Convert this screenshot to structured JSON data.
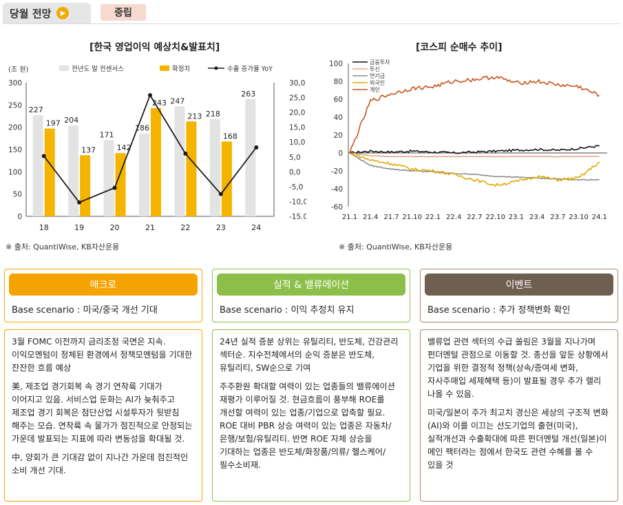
{
  "header": {
    "tab_label": "당월 전망",
    "arrow_glyph": "▶",
    "stance": "중립"
  },
  "chart_data": [
    {
      "type": "bar",
      "title": "[한국 영업이익 예상치&발표치]",
      "unit_label": "(조 원)",
      "categories": [
        "18",
        "19",
        "20",
        "21",
        "22",
        "23",
        "24"
      ],
      "series": [
        {
          "name": "전년도 말 컨센서스",
          "color": "#e3e3e3",
          "values": [
            227,
            204,
            171,
            186,
            247,
            218,
            263
          ]
        },
        {
          "name": "확정치",
          "color": "#f5b400",
          "values": [
            197,
            137,
            142,
            243,
            213,
            168,
            null
          ]
        },
        {
          "name": "수출 증가율 YoY",
          "type": "line",
          "axis": "right",
          "color": "#1a1a1a",
          "values": [
            5.3,
            -10.3,
            -5.4,
            25.8,
            6.1,
            -7.5,
            8.2
          ]
        }
      ],
      "ylim": [
        0,
        300
      ],
      "yticks": [
        "0",
        "50",
        "100",
        "150",
        "200",
        "250",
        "300"
      ],
      "y2lim": [
        -15,
        30
      ],
      "y2ticks": [
        "-15.0",
        "-10,0",
        "-5,0",
        "0,0",
        "5,0",
        "10,0",
        "15,0",
        "20,0",
        "25,0",
        "30,0"
      ],
      "source": "※ 출처: QuantiWise, KB자산운용"
    },
    {
      "type": "line",
      "title": "[코스피 순매수 추이]",
      "x": [
        "21.1",
        "21.4",
        "21.7",
        "21.10",
        "22.1",
        "22.4",
        "22.7",
        "22.10",
        "23.1",
        "23.4",
        "23.7",
        "23.10",
        "24.1"
      ],
      "ylim": [
        -60,
        100
      ],
      "yticks": [
        "-60",
        "-40",
        "-20",
        "0",
        "20",
        "40",
        "60",
        "80",
        "100"
      ],
      "series": [
        {
          "name": "금융투자",
          "color": "#111111",
          "values": [
            0,
            2,
            1,
            2,
            1,
            0,
            1,
            2,
            3,
            4,
            3,
            5,
            8
          ]
        },
        {
          "name": "투신",
          "color": "#e8a488",
          "values": [
            0,
            -3,
            -4,
            -4,
            -4,
            -4,
            -4,
            -4,
            -4,
            -4,
            -4,
            -4,
            -4
          ]
        },
        {
          "name": "연기금",
          "color": "#8c8c8c",
          "values": [
            0,
            -14,
            -18,
            -20,
            -21,
            -23,
            -24,
            -26,
            -27,
            -28,
            -29,
            -30,
            -30
          ]
        },
        {
          "name": "외국인",
          "color": "#e0a800",
          "values": [
            0,
            -8,
            -12,
            -18,
            -20,
            -24,
            -30,
            -36,
            -32,
            -26,
            -30,
            -28,
            -10
          ]
        },
        {
          "name": "개인",
          "color": "#c8531c",
          "values": [
            0,
            58,
            66,
            72,
            74,
            80,
            82,
            85,
            78,
            80,
            76,
            74,
            64
          ]
        }
      ],
      "source": "※ 출처: QuantiWise, KB자산운용"
    }
  ],
  "cards": [
    {
      "title": "매크로",
      "color": "#f5a300",
      "border": "#f5a300",
      "scenario": "Base scenario : 미국/중국 개선 기대",
      "paragraphs": [
        "3월 FOMC 이전까지 금리조정 국면은 지속. 이익모멘텀이 정체된 환경에서 정책모멘텀을 기대한 잔잔한 흐름 예상",
        "美, 제조업 경기회복 속 경기 연착륙 기대가 이어지고 있음. 서비스업 둔화는 AI가 늦춰주고 제조업 경기 회복은 첨단산업 시설투자가 뒷받침 해주는 모습. 연착륙 속 물가가 점진적으로 안정되는 가운데 발표되는 지표에 따라 변동성을 확대될 것.",
        "中, 양회가 큰 기대감 없이 지나간 가운데 점진적인 소비 개선 기대."
      ]
    },
    {
      "title": "실적 & 밸류에이션",
      "color": "#8cbf4a",
      "border": "#8cbf4a",
      "scenario": "Base scenario : 이익 추정치 유지",
      "paragraphs": [
        "24년 실적 증분 상위는 유틸리티, 반도체, 건강관리 섹터순. 지수전체에서의 순익 증분은 반도체, 유틸리티, SW순으로 기여",
        "주주환원 확대할 여력이 있는 업종들의 밸류에이션 재평가 이루어질 것. 현금흐름이 풍부해 ROE를 개선할 여력이 있는 업종/기업으로 압축할 필요. ROE 대비 PBR 상승 여력이 있는 업종은 자동차/은행/보험/유틸리티. 반면 ROE 자체 상승을 기대하는 업종은 반도체/화장품/의류/ 헬스케어/필수소비재."
      ]
    },
    {
      "title": "이벤트",
      "color": "#6f5f50",
      "border": "#b08a6e",
      "scenario": "Base scenario : 추가 정책변화 확인",
      "paragraphs": [
        "밸류업 관련 섹터의 수급 쏠림은 3월을 지나가며 펀더멘털 관점으로 이동할 것. 총선을 앞둔 상황에서 기업을 위한 결정적 정책(상속/증여세 변화, 자사주매입 세제혜택 등)이 발표될 경우 추가 랠리 나올 수 있음.",
        "미국/일본이 주가 최고치 경신은 세상의 구조적 변화(AI)와 이를 이끄는 선도기업의 출현(미국), 실적개선과 수출확대에 따른 펀더멘털 개선(일본)이 메인 팩터라는 점에서 한국도 관련 수혜를 볼 수 있을 것"
      ]
    }
  ]
}
